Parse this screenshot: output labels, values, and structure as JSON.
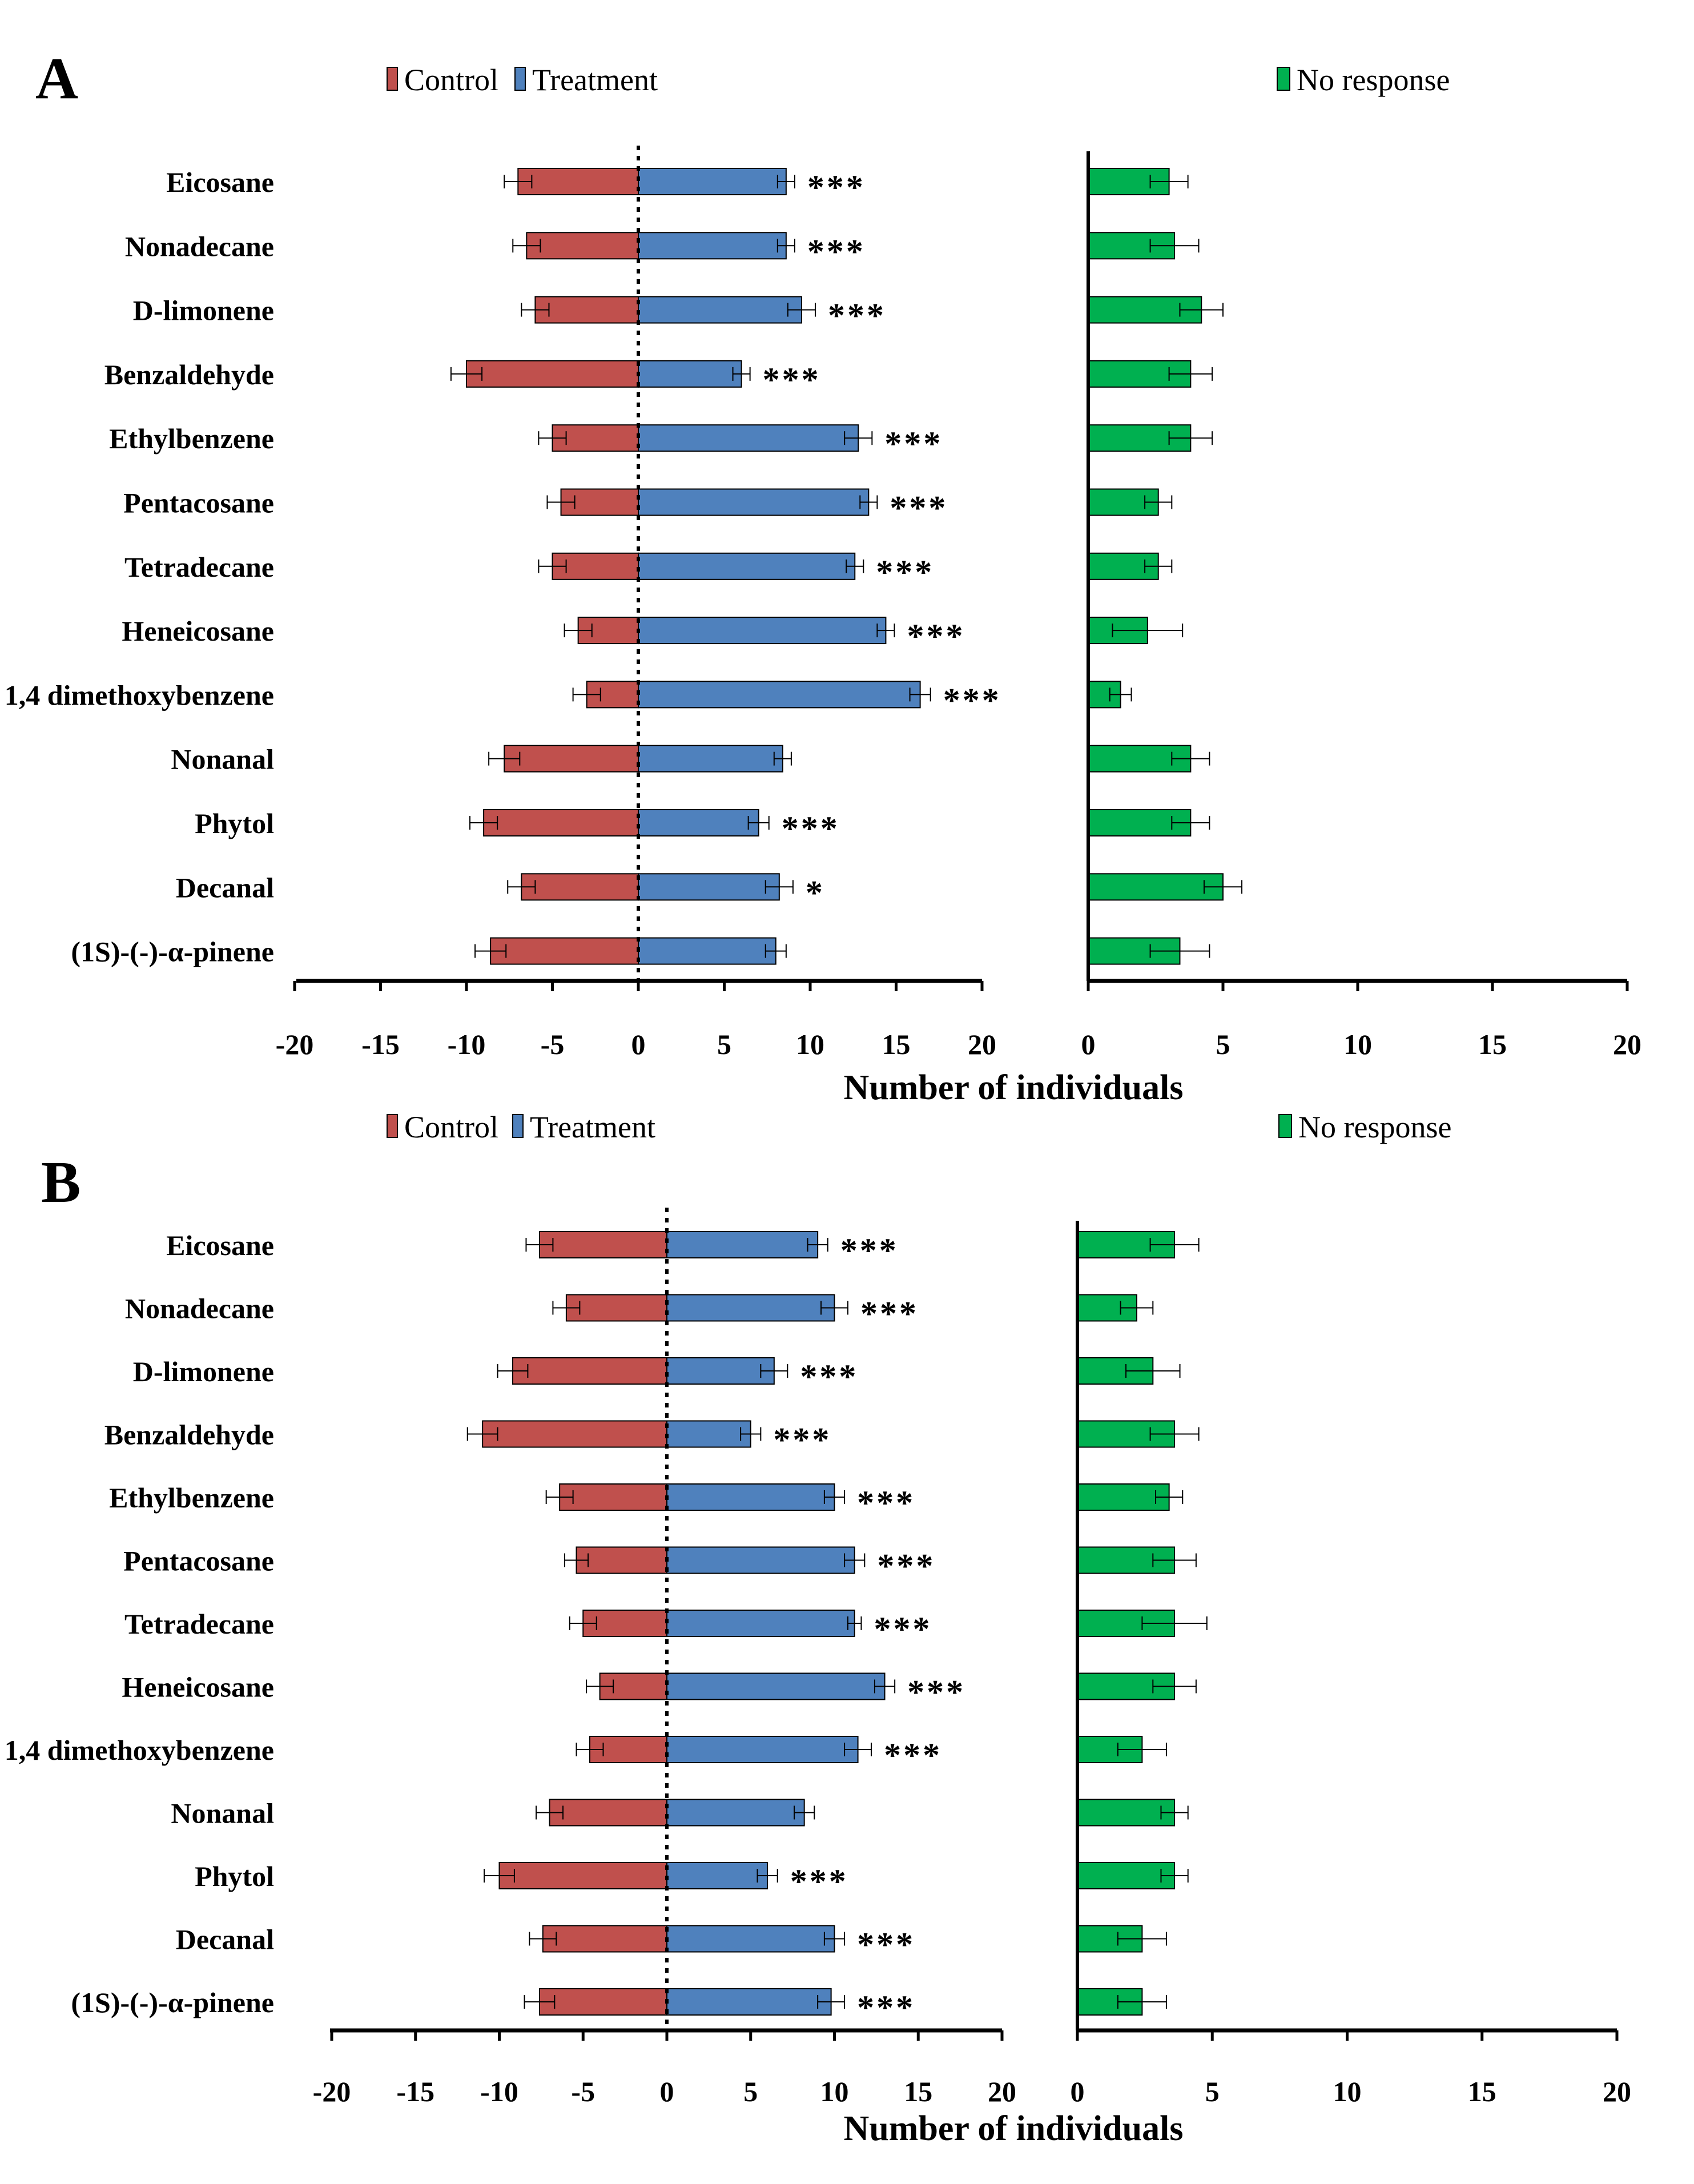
{
  "chart_data": [
    {
      "panel": "A",
      "type": "bar",
      "title": "",
      "xlabel": "Number of individuals",
      "ylabel": "",
      "legend": {
        "control": "Control",
        "treatment": "Treatment",
        "no_response": "No response"
      },
      "colors": {
        "control": "#c0504d",
        "treatment": "#4f81bd",
        "no_response": "#00b050"
      },
      "categories": [
        "Eicosane",
        "Nonadecane",
        "D-limonene",
        "Benzaldehyde",
        "Ethylbenzene",
        "Pentacosane",
        "Tetradecane",
        "Heneicosane",
        "1,4 dimethoxybenzene",
        "Nonanal",
        "Phytol",
        "Decanal",
        "(1S)-(-)-α-pinene"
      ],
      "series": [
        {
          "name": "Control",
          "values": [
            -7,
            -6.5,
            -6,
            -10,
            -5,
            -4.5,
            -5,
            -3.5,
            -3,
            -7.8,
            -9,
            -6.8,
            -8.6
          ],
          "errors": [
            0.8,
            0.8,
            0.8,
            0.9,
            0.8,
            0.8,
            0.8,
            0.8,
            0.8,
            0.9,
            0.8,
            0.8,
            0.9
          ]
        },
        {
          "name": "Treatment",
          "values": [
            8.6,
            8.6,
            9.5,
            6,
            12.8,
            13.4,
            12.6,
            14.4,
            16.4,
            8.4,
            7,
            8.2,
            8
          ],
          "errors": [
            0.5,
            0.5,
            0.8,
            0.5,
            0.8,
            0.5,
            0.5,
            0.5,
            0.6,
            0.5,
            0.6,
            0.8,
            0.6
          ]
        },
        {
          "name": "No response",
          "values": [
            3,
            3.2,
            4.2,
            3.8,
            3.8,
            2.6,
            2.6,
            2.2,
            1.2,
            3.8,
            3.8,
            5,
            3.4
          ],
          "errors": [
            0.7,
            0.9,
            0.8,
            0.8,
            0.8,
            0.5,
            0.5,
            1.3,
            0.4,
            0.7,
            0.7,
            0.7,
            1.1
          ]
        }
      ],
      "significance": [
        "***",
        "***",
        "***",
        "***",
        "***",
        "***",
        "***",
        "***",
        "***",
        "",
        "***",
        "*",
        ""
      ],
      "xlim_left": [
        -20,
        20
      ],
      "xlim_right": [
        0,
        20
      ],
      "xticks_left": [
        "-20",
        "-15",
        "-10",
        "-5",
        "0",
        "5",
        "10",
        "15",
        "20"
      ],
      "xticks_right": [
        "0",
        "5",
        "10",
        "15",
        "20"
      ]
    },
    {
      "panel": "B",
      "type": "bar",
      "title": "",
      "xlabel": "Number of individuals",
      "ylabel": "",
      "legend": {
        "control": "Control",
        "treatment": "Treatment",
        "no_response": "No response"
      },
      "colors": {
        "control": "#c0504d",
        "treatment": "#4f81bd",
        "no_response": "#00b050"
      },
      "categories": [
        "Eicosane",
        "Nonadecane",
        "D-limonene",
        "Benzaldehyde",
        "Ethylbenzene",
        "Pentacosane",
        "Tetradecane",
        "Heneicosane",
        "1,4 dimethoxybenzene",
        "Nonanal",
        "Phytol",
        "Decanal",
        "(1S)-(-)-α-pinene"
      ],
      "series": [
        {
          "name": "Control",
          "values": [
            -7.6,
            -6,
            -9.2,
            -11,
            -6.4,
            -5.4,
            -5,
            -4,
            -4.6,
            -7,
            -10,
            -7.4,
            -7.6
          ],
          "errors": [
            0.8,
            0.8,
            0.9,
            0.9,
            0.8,
            0.7,
            0.8,
            0.8,
            0.8,
            0.8,
            0.9,
            0.8,
            0.9
          ]
        },
        {
          "name": "Treatment",
          "values": [
            9,
            10,
            6.4,
            5,
            10,
            11.2,
            11.2,
            13,
            11.4,
            8.2,
            6,
            10,
            9.8
          ],
          "errors": [
            0.6,
            0.8,
            0.8,
            0.6,
            0.6,
            0.6,
            0.4,
            0.6,
            0.8,
            0.6,
            0.6,
            0.6,
            0.8
          ]
        },
        {
          "name": "No response",
          "values": [
            3.6,
            2.2,
            2.8,
            3.6,
            3.4,
            3.6,
            3.6,
            3.6,
            2.4,
            3.6,
            3.6,
            2.4,
            2.4
          ],
          "errors": [
            0.9,
            0.6,
            1,
            0.9,
            0.5,
            0.8,
            1.2,
            0.8,
            0.9,
            0.5,
            0.5,
            0.9,
            0.9
          ]
        }
      ],
      "significance": [
        "***",
        "***",
        "***",
        "***",
        "***",
        "***",
        "***",
        "***",
        "***",
        "",
        "***",
        "***",
        "***"
      ],
      "xlim_left": [
        -20,
        20
      ],
      "xlim_right": [
        0,
        20
      ],
      "xticks_left": [
        "-20",
        "-15",
        "-10",
        "-5",
        "0",
        "5",
        "10",
        "15",
        "20"
      ],
      "xticks_right": [
        "0",
        "5",
        "10",
        "15",
        "20"
      ]
    }
  ]
}
